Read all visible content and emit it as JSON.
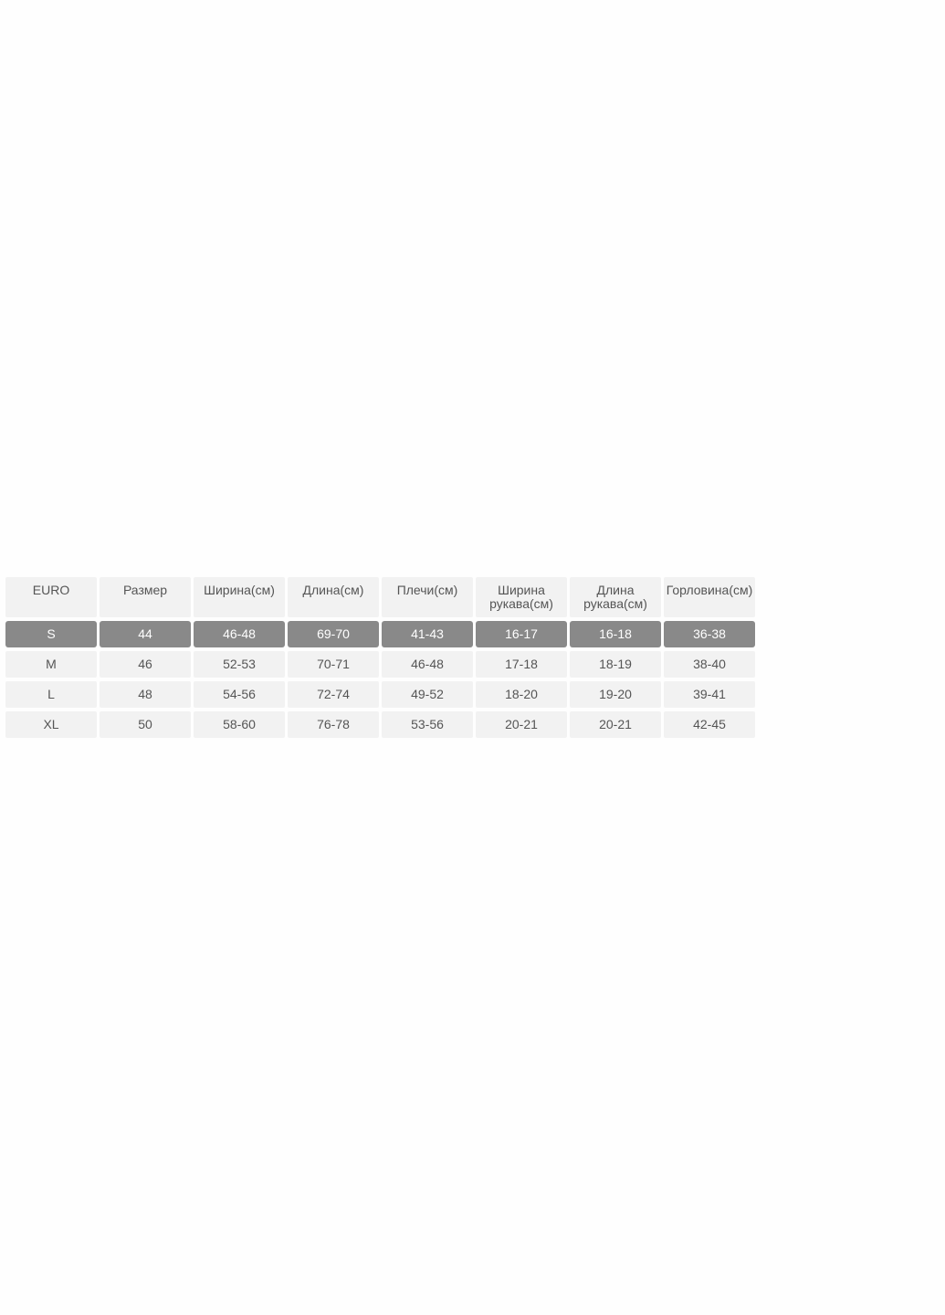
{
  "size_table": {
    "headers": [
      "EURO",
      "Размер",
      "Ширина(см)",
      "Длина(см)",
      "Плечи(см)",
      "Ширина рукава(см)",
      "Длина рукава(см)",
      "Горловина(см)"
    ],
    "rows": [
      [
        "S",
        "44",
        "46-48",
        "69-70",
        "41-43",
        "16-17",
        "16-18",
        "36-38"
      ],
      [
        "M",
        "46",
        "52-53",
        "70-71",
        "46-48",
        "17-18",
        "18-19",
        "38-40"
      ],
      [
        "L",
        "48",
        "54-56",
        "72-74",
        "49-52",
        "18-20",
        "19-20",
        "39-41"
      ],
      [
        "XL",
        "50",
        "58-60",
        "76-78",
        "53-56",
        "20-21",
        "20-21",
        "42-45"
      ]
    ],
    "highlighted_row": "S",
    "colors": {
      "cell_bg": "#f2f2f2",
      "highlight_bg": "#898989",
      "text": "#555555"
    }
  }
}
